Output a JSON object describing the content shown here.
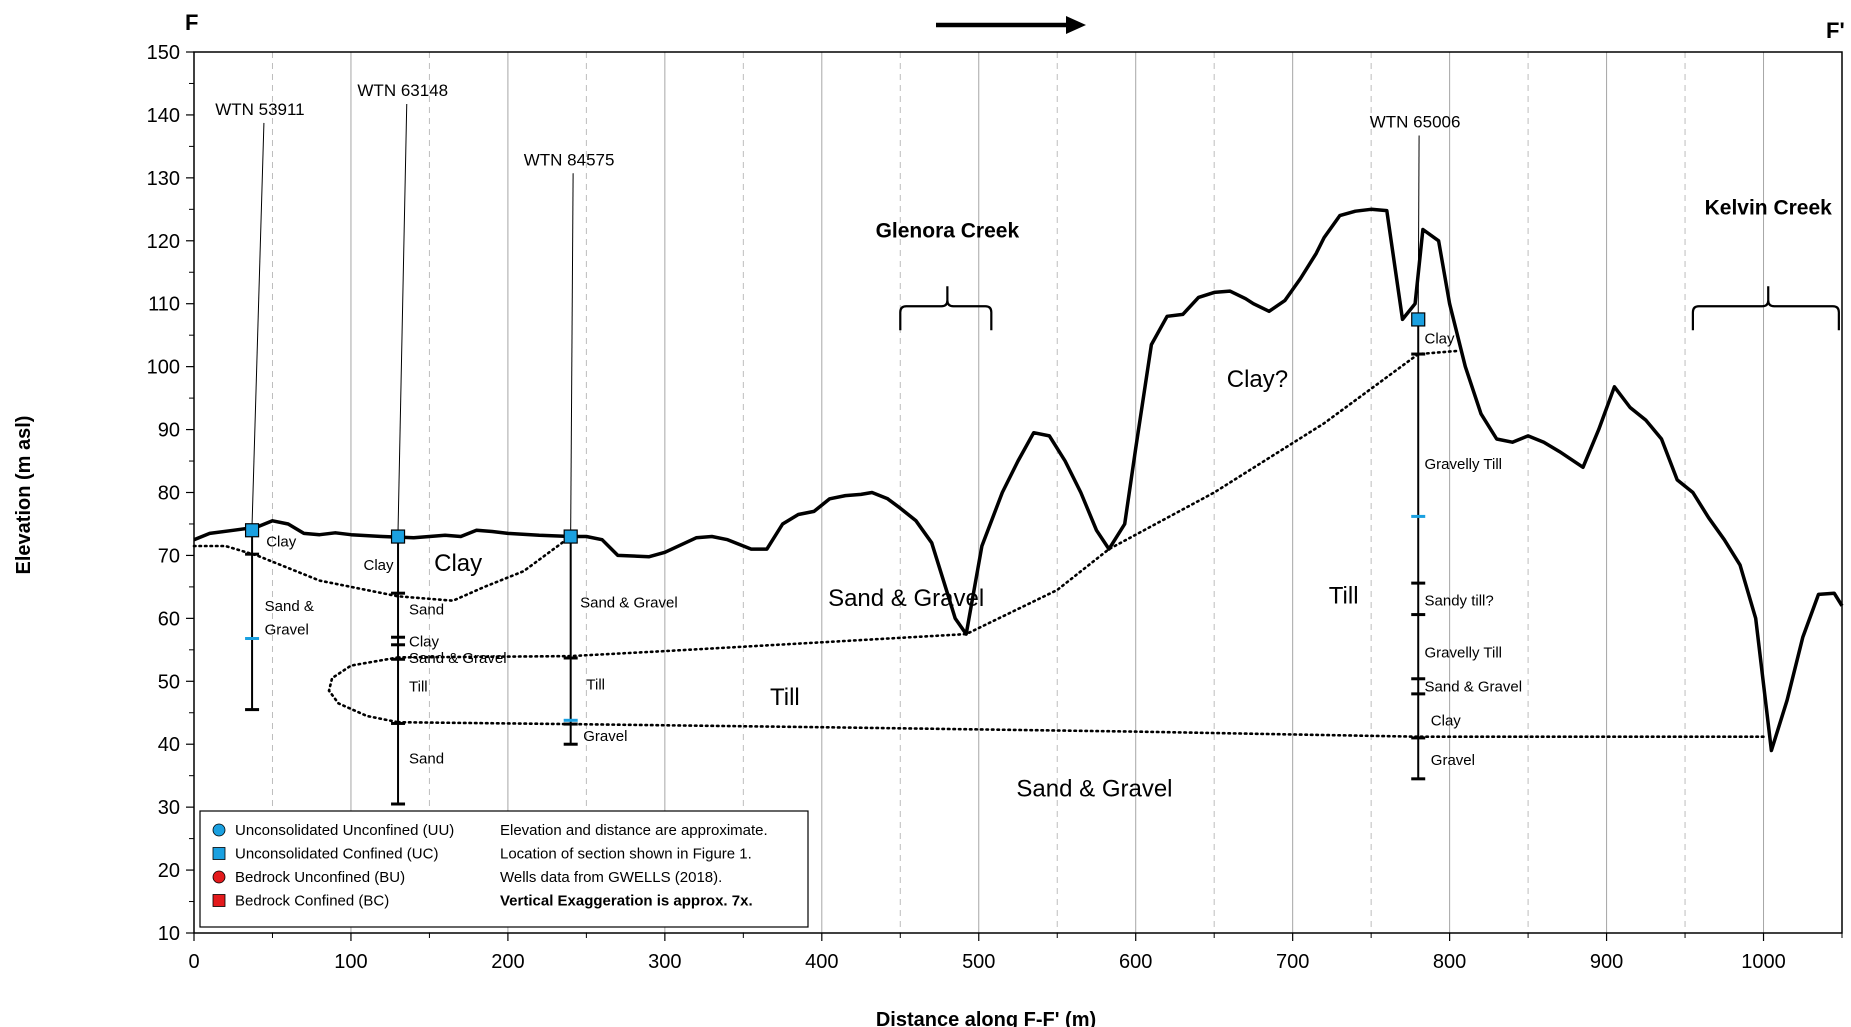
{
  "chart_data": {
    "type": "line",
    "section_start_label": "F",
    "section_end_label": "F'",
    "xlabel": "Distance along F-F' (m)",
    "ylabel": "Elevation (m asl)",
    "xlim": [
      0,
      1050
    ],
    "ylim": [
      10,
      150
    ],
    "x_ticks": [
      "0",
      "100",
      "200",
      "300",
      "400",
      "500",
      "600",
      "700",
      "800",
      "900",
      "1000"
    ],
    "y_ticks": [
      "10",
      "20",
      "30",
      "40",
      "50",
      "60",
      "70",
      "80",
      "90",
      "100",
      "110",
      "120",
      "130",
      "140",
      "150"
    ],
    "grid": "major solid and minor dashed vertical gridlines",
    "ground_surface": {
      "x": [
        0,
        10,
        25,
        40,
        50,
        60,
        70,
        80,
        90,
        100,
        120,
        140,
        160,
        170,
        180,
        190,
        200,
        220,
        240,
        250,
        260,
        270,
        290,
        300,
        320,
        330,
        340,
        355,
        365,
        375,
        385,
        395,
        405,
        415,
        425,
        432,
        442,
        450,
        460,
        470,
        480,
        485,
        492,
        502,
        515,
        525,
        535,
        545,
        555,
        565,
        575,
        583,
        593,
        600,
        610,
        620,
        630,
        640,
        650,
        660,
        670,
        675,
        685,
        695,
        705,
        715,
        720,
        730,
        740,
        750,
        760,
        770,
        778,
        783,
        793,
        800,
        810,
        820,
        830,
        840,
        850,
        860,
        870,
        885,
        895,
        905,
        915,
        925,
        935,
        945,
        955,
        965,
        975,
        985,
        995,
        1005,
        1015,
        1025,
        1035,
        1045,
        1050
      ],
      "y": [
        72.5,
        73.5,
        74,
        74.5,
        75.5,
        75,
        73.5,
        73.3,
        73.6,
        73.3,
        73,
        72.8,
        73.2,
        73,
        74,
        73.8,
        73.5,
        73.2,
        73,
        73,
        72.5,
        70,
        69.8,
        70.5,
        72.8,
        73,
        72.5,
        71,
        71,
        75,
        76.5,
        77,
        79,
        79.5,
        79.7,
        80,
        79,
        77.5,
        75.5,
        72,
        64,
        60,
        57.5,
        71.5,
        80,
        85,
        89.5,
        89,
        85,
        80,
        74,
        71,
        75,
        87,
        103.5,
        108,
        108.3,
        111,
        111.8,
        112,
        110.8,
        110,
        108.8,
        110.5,
        114,
        118,
        120.5,
        124,
        124.7,
        125,
        124.8,
        107.5,
        110,
        121.8,
        120,
        110,
        100,
        92.5,
        88.5,
        88,
        89,
        88,
        86.5,
        84,
        90,
        96.8,
        93.5,
        91.5,
        88.5,
        82,
        80,
        76,
        72.5,
        68.5,
        60,
        39,
        47,
        57,
        63.8,
        64,
        62
      ]
    },
    "contacts": {
      "clay_base": {
        "x": [
          0,
          20,
          40,
          80,
          130,
          165,
          185,
          210,
          240
        ],
        "y": [
          71.5,
          71.5,
          70,
          66,
          63.5,
          62.8,
          65,
          67.5,
          73
        ]
      },
      "sand_gravel_base": {
        "x": [
          130,
          240,
          300,
          400,
          492,
          550,
          583,
          650,
          720,
          780,
          805
        ],
        "y": [
          53.8,
          54,
          54.8,
          56.2,
          57.5,
          64.5,
          71,
          80,
          91,
          102,
          102.5
        ]
      },
      "till_lens": {
        "x": [
          130,
          100,
          88,
          86,
          92,
          110,
          130
        ],
        "y": [
          53.8,
          52.5,
          50.5,
          48.5,
          46.5,
          44.5,
          43.5
        ]
      },
      "till_base": {
        "x": [
          130,
          240,
          400,
          600,
          780,
          1000
        ],
        "y": [
          43.5,
          43.2,
          42.7,
          42,
          41.2,
          41.2
        ]
      }
    },
    "wells": [
      {
        "name": "WTN 53911",
        "x": 37,
        "top": 74,
        "bottom": 45.5,
        "water_level": 56.8,
        "contacts": [
          70.2
        ],
        "label_x": 42,
        "label_y": 140,
        "intervals": [
          {
            "label": "Clay",
            "y": 72.2,
            "x": 46
          },
          {
            "label": "Sand &",
            "y": 62,
            "x": 45
          },
          {
            "label": "Gravel",
            "y": 58.2,
            "x": 45
          }
        ]
      },
      {
        "name": "WTN 63148",
        "x": 130,
        "top": 73,
        "bottom": 30.5,
        "water_level": null,
        "contacts": [
          64,
          57,
          55.8,
          53.5,
          43.3
        ],
        "label_x": 133,
        "label_y": 143,
        "intervals": [
          {
            "label": "Clay",
            "y": 68.5,
            "x": 108
          },
          {
            "label": "Sand",
            "y": 61.4,
            "x": 137
          },
          {
            "label": "Clay",
            "y": 56.3,
            "x": 137
          },
          {
            "label": "Sand & Gravel",
            "y": 53.7,
            "x": 137
          },
          {
            "label": "Till",
            "y": 49.2,
            "x": 137
          },
          {
            "label": "Sand",
            "y": 37.7,
            "x": 137
          }
        ]
      },
      {
        "name": "WTN 84575",
        "x": 240,
        "top": 73,
        "bottom": 40,
        "water_level": 43.8,
        "contacts": [
          53.7,
          43.2
        ],
        "label_x": 239,
        "label_y": 132,
        "intervals": [
          {
            "label": "Sand & Gravel",
            "y": 62.5,
            "x": 246
          },
          {
            "label": "Till",
            "y": 49.5,
            "x": 250
          },
          {
            "label": "Gravel",
            "y": 41.3,
            "x": 248
          }
        ]
      },
      {
        "name": "WTN 65006",
        "x": 780,
        "top": 107.5,
        "bottom": 34.5,
        "water_level": 76.2,
        "contacts": [
          102,
          65.6,
          60.6,
          50.4,
          48,
          41
        ],
        "label_x": 778,
        "label_y": 138,
        "intervals": [
          {
            "label": "Clay",
            "y": 104.5,
            "x": 784
          },
          {
            "label": "Gravelly Till",
            "y": 84.5,
            "x": 784
          },
          {
            "label": "Sandy till?",
            "y": 62.8,
            "x": 784
          },
          {
            "label": "Gravelly Till",
            "y": 54.6,
            "x": 784
          },
          {
            "label": "Sand & Gravel",
            "y": 49.2,
            "x": 784
          },
          {
            "label": "Clay",
            "y": 43.8,
            "x": 788
          },
          {
            "label": "Gravel",
            "y": 37.5,
            "x": 788
          }
        ]
      }
    ],
    "unit_labels": [
      {
        "text": "Clay",
        "x": 153,
        "y": 68.8,
        "size": "lg"
      },
      {
        "text": "Sand & Gravel",
        "x": 404,
        "y": 63.2,
        "size": "lg"
      },
      {
        "text": "Clay?",
        "x": 658,
        "y": 98,
        "size": "lg"
      },
      {
        "text": "Till",
        "x": 723,
        "y": 63.6,
        "size": "lg"
      },
      {
        "text": "Till",
        "x": 367,
        "y": 47.5,
        "size": "lg"
      },
      {
        "text": "Sand & Gravel",
        "x": 524,
        "y": 33,
        "size": "lg"
      }
    ],
    "creeks": [
      {
        "name": "Glenora Creek",
        "x_from": 450,
        "x_to": 508,
        "label_x": 480
      },
      {
        "name": "Kelvin Creek",
        "x_from": 955,
        "x_to": 1048,
        "label_x": 1003
      }
    ],
    "legend": {
      "entries": [
        {
          "label": "Unconsolidated Unconfined (UU)",
          "marker": "circle",
          "color": "#1aa0e0"
        },
        {
          "label": "Unconsolidated Confined (UC)",
          "marker": "square",
          "color": "#1aa0e0"
        },
        {
          "label": "Bedrock Unconfined (BU)",
          "marker": "circle",
          "color": "#e31a1c"
        },
        {
          "label": "Bedrock Confined (BC)",
          "marker": "square",
          "color": "#e31a1c"
        }
      ],
      "notes": [
        "Elevation and distance are approximate.",
        "Location of section shown in Figure 1.",
        "Wells data from GWELLS (2018).",
        "Vertical Exaggeration is approx. 7x."
      ],
      "placement": "bottom-left"
    },
    "colors": {
      "well_marker": "#1aa0e0",
      "water_level": "#1aa0e0",
      "line": "#000000"
    }
  }
}
